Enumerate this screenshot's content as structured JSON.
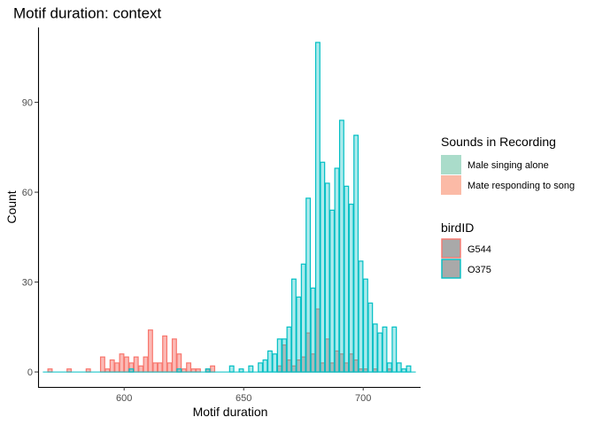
{
  "chart_data": {
    "type": "histogram",
    "title": "Motif duration: context",
    "xlabel": "Motif duration",
    "ylabel": "Count",
    "xlim": [
      564,
      724
    ],
    "ylim": [
      -5,
      115
    ],
    "x_ticks": [
      600,
      650,
      700
    ],
    "y_ticks": [
      0,
      30,
      60,
      90
    ],
    "bin_width": 2,
    "grid": false,
    "legend_position": "right",
    "legend": {
      "fill": {
        "title": "Sounds in Recording",
        "entries": [
          {
            "label": "Male singing alone",
            "color": "#aadcca"
          },
          {
            "label": "Mate responding to song",
            "color": "#fbbaa6"
          }
        ]
      },
      "color": {
        "title": "birdID",
        "entries": [
          {
            "label": "G544",
            "color": "#f8766d"
          },
          {
            "label": "O375",
            "color": "#00bfc4"
          }
        ]
      }
    },
    "series": [
      {
        "name": "G544",
        "sound": "Mate responding to song",
        "fill": "#f8766d",
        "outline": "#f8766d",
        "bins": [
          [
            568,
            1
          ],
          [
            576,
            1
          ],
          [
            584,
            1
          ],
          [
            590,
            5
          ],
          [
            592,
            1
          ],
          [
            594,
            4
          ],
          [
            596,
            3
          ],
          [
            598,
            6
          ],
          [
            600,
            5
          ],
          [
            602,
            3
          ],
          [
            604,
            5
          ],
          [
            606,
            2
          ],
          [
            608,
            5
          ],
          [
            610,
            14
          ],
          [
            612,
            3
          ],
          [
            614,
            3
          ],
          [
            616,
            12
          ],
          [
            618,
            3
          ],
          [
            620,
            11
          ],
          [
            622,
            6
          ],
          [
            624,
            1
          ],
          [
            626,
            3
          ],
          [
            628,
            1
          ],
          [
            630,
            1
          ],
          [
            634,
            1
          ],
          [
            636,
            2
          ],
          [
            664,
            2
          ],
          [
            666,
            9
          ],
          [
            668,
            4
          ],
          [
            670,
            2
          ],
          [
            672,
            4
          ],
          [
            674,
            5
          ],
          [
            676,
            13
          ],
          [
            678,
            6
          ],
          [
            680,
            21
          ],
          [
            682,
            3
          ],
          [
            684,
            11
          ],
          [
            686,
            3
          ],
          [
            688,
            7
          ],
          [
            690,
            6
          ],
          [
            692,
            3
          ],
          [
            694,
            6
          ],
          [
            696,
            4
          ],
          [
            698,
            1
          ],
          [
            700,
            1
          ],
          [
            704,
            1
          ],
          [
            710,
            1
          ]
        ]
      },
      {
        "name": "O375",
        "sound": "Male singing alone",
        "fill": "#00bfc4",
        "outline": "#00bfc4",
        "bins": [
          [
            602,
            1
          ],
          [
            622,
            1
          ],
          [
            634,
            1
          ],
          [
            644,
            2
          ],
          [
            648,
            1
          ],
          [
            652,
            2
          ],
          [
            656,
            3
          ],
          [
            658,
            4
          ],
          [
            660,
            7
          ],
          [
            662,
            6
          ],
          [
            664,
            11
          ],
          [
            666,
            11
          ],
          [
            668,
            15
          ],
          [
            670,
            31
          ],
          [
            672,
            25
          ],
          [
            674,
            36
          ],
          [
            676,
            58
          ],
          [
            678,
            28
          ],
          [
            680,
            110
          ],
          [
            682,
            70
          ],
          [
            684,
            63
          ],
          [
            686,
            54
          ],
          [
            688,
            68
          ],
          [
            690,
            84
          ],
          [
            692,
            62
          ],
          [
            694,
            56
          ],
          [
            696,
            79
          ],
          [
            698,
            37
          ],
          [
            700,
            31
          ],
          [
            702,
            23
          ],
          [
            704,
            16
          ],
          [
            706,
            13
          ],
          [
            708,
            15
          ],
          [
            710,
            3
          ],
          [
            712,
            15
          ],
          [
            714,
            3
          ],
          [
            716,
            1
          ],
          [
            718,
            2
          ]
        ]
      }
    ]
  }
}
